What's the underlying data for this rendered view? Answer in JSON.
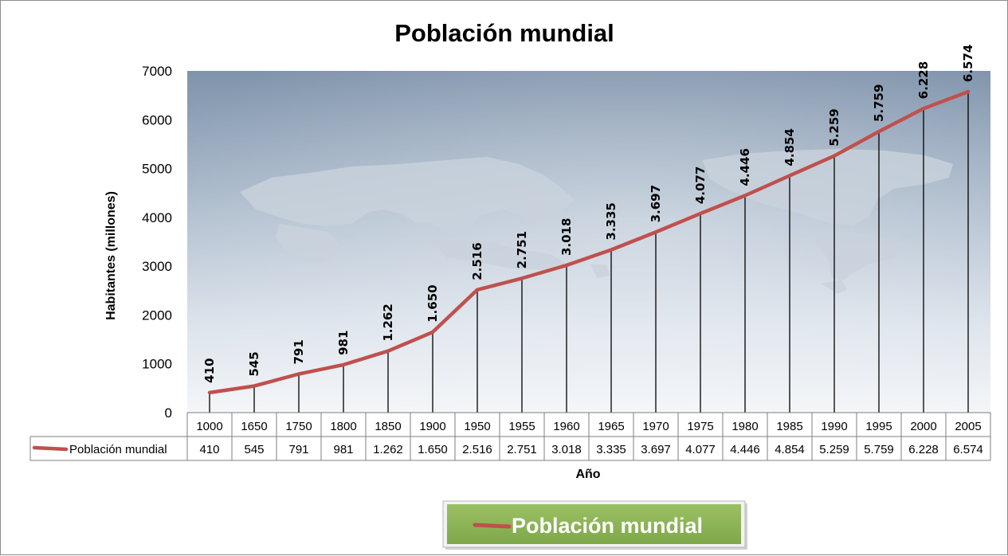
{
  "chart_data": {
    "type": "line",
    "title": "Población mundial",
    "xlabel": "Año",
    "ylabel": "Habitantes (millones)",
    "ylim": [
      0,
      7000
    ],
    "yticks": [
      0,
      1000,
      2000,
      3000,
      4000,
      5000,
      6000,
      7000
    ],
    "categories": [
      "1000",
      "1650",
      "1750",
      "1800",
      "1850",
      "1900",
      "1950",
      "1955",
      "1960",
      "1965",
      "1970",
      "1975",
      "1980",
      "1985",
      "1990",
      "1995",
      "2000",
      "2005"
    ],
    "series": [
      {
        "name": "Población mundial",
        "color": "#c0504d",
        "values": [
          410,
          545,
          791,
          981,
          1262,
          1650,
          2516,
          2751,
          3018,
          3335,
          3697,
          4077,
          4446,
          4854,
          5259,
          5759,
          6228,
          6574
        ],
        "labels": [
          "410",
          "545",
          "791",
          "981",
          "1.262",
          "1.650",
          "2.516",
          "2.751",
          "3.018",
          "3.335",
          "3.697",
          "4.077",
          "4.446",
          "4.854",
          "5.259",
          "5.759",
          "6.228",
          "6.574"
        ]
      }
    ],
    "drop_lines": true,
    "data_table": true,
    "legend_position": "bottom",
    "legend_label": "Población mundial",
    "legend_background": "#8db356",
    "plot_background": "world-map-blue-gradient"
  }
}
